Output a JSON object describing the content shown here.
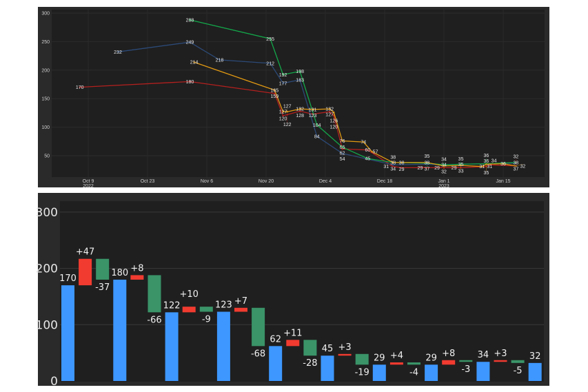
{
  "chart_data": [
    {
      "type": "line",
      "title": "",
      "xlabel": "",
      "ylabel": "",
      "ylim": [
        12,
        305
      ],
      "yticks": [
        50,
        100,
        150,
        200,
        250,
        300
      ],
      "xticks": [
        {
          "date": "2022-10-09",
          "label": "Oct 9",
          "sub": "2022"
        },
        {
          "date": "2022-10-23",
          "label": "Oct 23",
          "sub": ""
        },
        {
          "date": "2022-11-06",
          "label": "Nov 6",
          "sub": ""
        },
        {
          "date": "2022-11-20",
          "label": "Nov 20",
          "sub": ""
        },
        {
          "date": "2022-12-04",
          "label": "Dec 4",
          "sub": ""
        },
        {
          "date": "2022-12-18",
          "label": "Dec 18",
          "sub": ""
        },
        {
          "date": "2023-01-01",
          "label": "Jan 1",
          "sub": "2023"
        },
        {
          "date": "2023-01-15",
          "label": "Jan 15",
          "sub": ""
        }
      ],
      "grid": true,
      "series": [
        {
          "color": "#b3201f",
          "points": [
            [
              "2022-10-07",
              170
            ],
            [
              "2022-11-02",
              180
            ],
            [
              "2022-11-22",
              159
            ],
            [
              "2022-11-24",
              120
            ],
            [
              "2022-11-25",
              122
            ],
            [
              "2022-11-28",
              128
            ],
            [
              "2022-12-01",
              123
            ],
            [
              "2022-12-05",
              127
            ],
            [
              "2022-12-06",
              120
            ],
            [
              "2022-12-08",
              62
            ],
            [
              "2022-12-14",
              60
            ],
            [
              "2022-12-20",
              31
            ],
            [
              "2022-12-22",
              29
            ],
            [
              "2022-12-28",
              29
            ],
            [
              "2023-01-01",
              29
            ],
            [
              "2023-01-05",
              29
            ],
            [
              "2023-01-11",
              31
            ],
            [
              "2023-01-12",
              34
            ],
            [
              "2023-01-18",
              32
            ]
          ]
        },
        {
          "color": "#2c4a78",
          "points": [
            [
              "2022-10-16",
              232
            ],
            [
              "2022-11-02",
              249
            ],
            [
              "2022-11-09",
              218
            ],
            [
              "2022-11-21",
              212
            ],
            [
              "2022-11-24",
              177
            ],
            [
              "2022-11-28",
              183
            ],
            [
              "2022-12-02",
              84
            ],
            [
              "2022-12-08",
              54
            ],
            [
              "2022-12-20",
              34
            ],
            [
              "2022-12-28",
              35
            ],
            [
              "2023-01-01",
              34
            ],
            [
              "2023-01-05",
              35
            ],
            [
              "2023-01-11",
              36
            ],
            [
              "2023-01-18",
              37
            ]
          ]
        },
        {
          "color": "#13a84a",
          "points": [
            [
              "2022-11-02",
              288
            ],
            [
              "2022-11-21",
              255
            ],
            [
              "2022-11-24",
              192
            ],
            [
              "2022-11-28",
              198
            ],
            [
              "2022-12-02",
              104
            ],
            [
              "2022-12-08",
              65
            ],
            [
              "2022-12-14",
              45
            ],
            [
              "2022-12-20",
              38
            ],
            [
              "2022-12-28",
              37
            ],
            [
              "2023-01-01",
              34
            ],
            [
              "2023-01-05",
              35
            ],
            [
              "2023-01-11",
              36
            ],
            [
              "2023-01-18",
              38
            ]
          ]
        },
        {
          "color": "#e39a12",
          "points": [
            [
              "2022-11-03",
              214
            ],
            [
              "2022-11-22",
              165
            ],
            [
              "2022-11-24",
              127
            ],
            [
              "2022-11-25",
              127
            ],
            [
              "2022-11-28",
              132
            ],
            [
              "2022-12-01",
              131
            ],
            [
              "2022-12-05",
              132
            ],
            [
              "2022-12-06",
              126
            ],
            [
              "2022-12-08",
              76
            ],
            [
              "2022-12-13",
              74
            ],
            [
              "2022-12-15",
              57
            ],
            [
              "2022-12-20",
              38
            ],
            [
              "2022-12-22",
              38
            ],
            [
              "2022-12-28",
              38
            ],
            [
              "2023-01-01",
              32
            ],
            [
              "2023-01-05",
              33
            ],
            [
              "2023-01-10",
              31
            ],
            [
              "2023-01-11",
              35
            ],
            [
              "2023-01-15",
              36
            ],
            [
              "2023-01-18",
              32
            ]
          ]
        }
      ]
    },
    {
      "type": "bar",
      "subtype": "waterfall",
      "title": "",
      "xlabel": "",
      "ylabel": "",
      "ylim": [
        0,
        300
      ],
      "yticks": [
        0,
        100,
        200,
        300
      ],
      "grid": true,
      "colors": {
        "total": "#3d97ff",
        "increase": "#f23b30",
        "decrease": "#3a9468"
      },
      "steps": [
        {
          "kind": "total",
          "value": 170,
          "label": "170"
        },
        {
          "kind": "increase",
          "value": 47,
          "label": "+47"
        },
        {
          "kind": "decrease",
          "value": -37,
          "label": "-37"
        },
        {
          "kind": "total",
          "value": 180,
          "label": "180"
        },
        {
          "kind": "increase",
          "value": 8,
          "label": "+8"
        },
        {
          "kind": "decrease",
          "value": -66,
          "label": "-66"
        },
        {
          "kind": "total",
          "value": 122,
          "label": "122"
        },
        {
          "kind": "increase",
          "value": 10,
          "label": "+10"
        },
        {
          "kind": "decrease",
          "value": -9,
          "label": "-9"
        },
        {
          "kind": "total",
          "value": 123,
          "label": "123"
        },
        {
          "kind": "increase",
          "value": 7,
          "label": "+7"
        },
        {
          "kind": "decrease",
          "value": -68,
          "label": "-68"
        },
        {
          "kind": "total",
          "value": 62,
          "label": "62"
        },
        {
          "kind": "increase",
          "value": 11,
          "label": "+11"
        },
        {
          "kind": "decrease",
          "value": -28,
          "label": "-28"
        },
        {
          "kind": "total",
          "value": 45,
          "label": "45"
        },
        {
          "kind": "increase",
          "value": 3,
          "label": "+3"
        },
        {
          "kind": "decrease",
          "value": -19,
          "label": "-19"
        },
        {
          "kind": "total",
          "value": 29,
          "label": "29"
        },
        {
          "kind": "increase",
          "value": 4,
          "label": "+4"
        },
        {
          "kind": "decrease",
          "value": -4,
          "label": "-4"
        },
        {
          "kind": "total",
          "value": 29,
          "label": "29"
        },
        {
          "kind": "increase",
          "value": 8,
          "label": "+8"
        },
        {
          "kind": "decrease",
          "value": -3,
          "label": "-3"
        },
        {
          "kind": "total",
          "value": 34,
          "label": "34"
        },
        {
          "kind": "increase",
          "value": 3,
          "label": "+3"
        },
        {
          "kind": "decrease",
          "value": -5,
          "label": "-5"
        },
        {
          "kind": "total",
          "value": 32,
          "label": "32"
        }
      ]
    }
  ]
}
